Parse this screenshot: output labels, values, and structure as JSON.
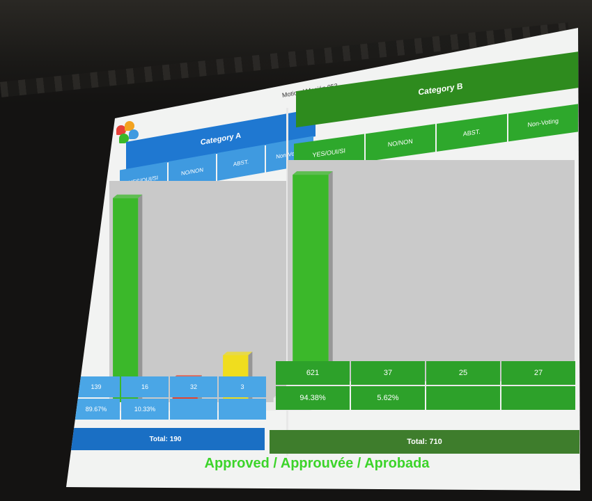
{
  "motion_title": "Motion / Moción 053",
  "result": "Approved / Approuvée / Aprobada",
  "colors": {
    "yes": "#3bb82a",
    "no": "#e5422c",
    "abst": "#f0dd1e",
    "nonvoting": "#e8e8e8",
    "category_a": "#1f78d1",
    "category_b": "#2e8b1e"
  },
  "category_a": {
    "title": "Category A",
    "columns": [
      "YES/OUI/SI",
      "NO/NON",
      "ABST.",
      "Non-Voting"
    ],
    "counts": [
      "139",
      "16",
      "32",
      "3"
    ],
    "percents": [
      "89.67%",
      "10.33%",
      "",
      ""
    ],
    "total": "Total: 190"
  },
  "category_b": {
    "title": "Category B",
    "columns": [
      "YES/OUI/SI",
      "NO/NON",
      "ABST.",
      "Non-Voting"
    ],
    "counts": [
      "621",
      "37",
      "25",
      "27"
    ],
    "percents": [
      "94.38%",
      "5.62%",
      "",
      ""
    ],
    "total": "Total: 710"
  },
  "chart_data": [
    {
      "type": "bar",
      "title": "Category A",
      "categories": [
        "YES/OUI/SI",
        "NO/NON",
        "ABST.",
        "Non-Voting"
      ],
      "values": [
        139,
        16,
        32,
        3
      ],
      "ylim": [
        0,
        145
      ]
    },
    {
      "type": "bar",
      "title": "Category B",
      "categories": [
        "YES/OUI/SI",
        "NO/NON",
        "ABST.",
        "Non-Voting"
      ],
      "values": [
        621,
        37,
        25,
        27
      ],
      "ylim": [
        0,
        640
      ]
    }
  ]
}
